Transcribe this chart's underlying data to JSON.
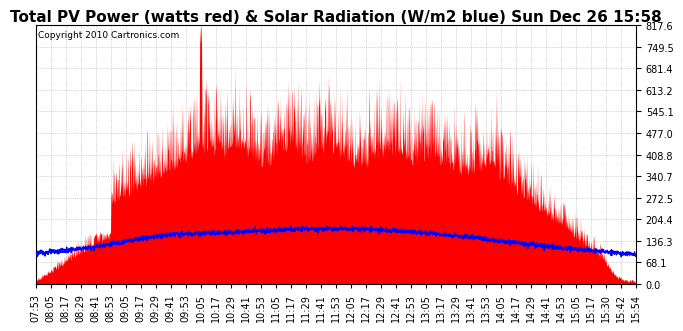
{
  "title": "Total PV Power (watts red) & Solar Radiation (W/m2 blue) Sun Dec 26 15:58",
  "copyright_text": "Copyright 2010 Cartronics.com",
  "ylabel_right_values": [
    0.0,
    68.1,
    136.3,
    204.4,
    272.5,
    340.7,
    408.8,
    477.0,
    545.1,
    613.2,
    681.4,
    749.5,
    817.6
  ],
  "ymax": 817.6,
  "ymin": 0.0,
  "background_color": "#ffffff",
  "plot_bg_color": "#ffffff",
  "grid_color": "#aaaaaa",
  "red_color": "#ff0000",
  "blue_color": "#0000ff",
  "x_tick_labels": [
    "07:53",
    "08:05",
    "08:17",
    "08:29",
    "08:41",
    "08:53",
    "09:05",
    "09:17",
    "09:29",
    "09:41",
    "09:53",
    "10:05",
    "10:17",
    "10:29",
    "10:41",
    "10:53",
    "11:05",
    "11:17",
    "11:29",
    "11:41",
    "11:53",
    "12:05",
    "12:17",
    "12:29",
    "12:41",
    "12:53",
    "13:05",
    "13:17",
    "13:29",
    "13:41",
    "13:53",
    "14:05",
    "14:17",
    "14:29",
    "14:41",
    "14:53",
    "15:05",
    "15:17",
    "15:30",
    "15:42",
    "15:54"
  ],
  "title_fontsize": 11,
  "tick_fontsize": 7,
  "copyright_fontsize": 6.5,
  "solar_peak": 175,
  "solar_base": 68,
  "pv_envelope_peak": 430,
  "big_spike_value": 810
}
